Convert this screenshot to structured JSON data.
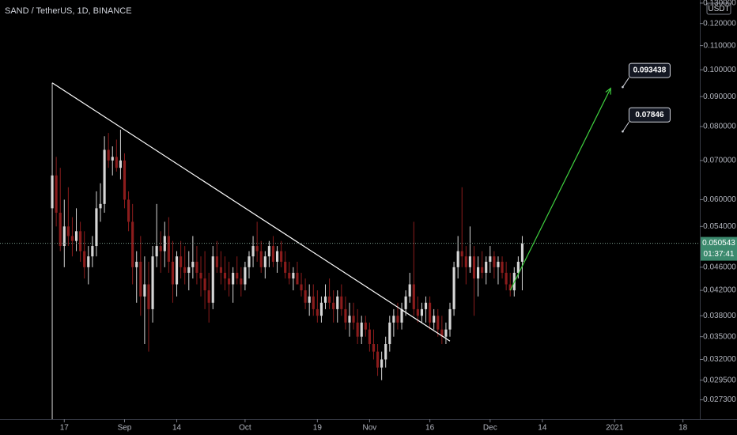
{
  "chart_data": {
    "type": "candlestick",
    "title": "SAND / TetherUS, 1D, BINANCE",
    "quote_unit": "USDT",
    "up_color": "#d6d6d6",
    "down_color": "#8b1c1c",
    "log_scale": true,
    "ylim": [
      0.0253,
      0.1316
    ],
    "yticks": [
      {
        "value": 0.0273,
        "label": "0.027300"
      },
      {
        "value": 0.0295,
        "label": "0.029500"
      },
      {
        "value": 0.032,
        "label": "0.032000"
      },
      {
        "value": 0.035,
        "label": "0.035000"
      },
      {
        "value": 0.038,
        "label": "0.038000"
      },
      {
        "value": 0.042,
        "label": "0.042000"
      },
      {
        "value": 0.046,
        "label": "0.046000"
      },
      {
        "value": 0.054,
        "label": "0.054000"
      },
      {
        "value": 0.06,
        "label": "0.060000"
      },
      {
        "value": 0.07,
        "label": "0.070000"
      },
      {
        "value": 0.08,
        "label": "0.080000"
      },
      {
        "value": 0.09,
        "label": "0.090000"
      },
      {
        "value": 0.1,
        "label": "0.100000"
      },
      {
        "value": 0.11,
        "label": "0.110000"
      },
      {
        "value": 0.12,
        "label": "0.120000"
      },
      {
        "value": 0.13,
        "label": "0.130000"
      }
    ],
    "xlim": [
      -13,
      161.2
    ],
    "xticks": [
      {
        "value": 3,
        "label": "17"
      },
      {
        "value": 18,
        "label": "Sep"
      },
      {
        "value": 31,
        "label": "14"
      },
      {
        "value": 48,
        "label": "Oct"
      },
      {
        "value": 66,
        "label": "19"
      },
      {
        "value": 79,
        "label": "Nov"
      },
      {
        "value": 94,
        "label": "16"
      },
      {
        "value": 109,
        "label": "Dec"
      },
      {
        "value": 122,
        "label": "14"
      },
      {
        "value": 140,
        "label": "2021"
      },
      {
        "value": 157,
        "label": "18"
      }
    ],
    "last_price": 0.050543,
    "countdown": "01:37:41",
    "trend_line": [
      [
        0,
        0.095
      ],
      [
        99,
        0.0344
      ]
    ],
    "arrow": [
      [
        114,
        0.042
      ],
      [
        139,
        0.093
      ]
    ],
    "arrow_color": "#3fd13f",
    "price_labels": [
      {
        "x": 142,
        "value": 0.093438
      },
      {
        "x": 142,
        "value": 0.07846
      }
    ],
    "ohlc": [
      [
        0.058,
        0.095,
        0.0245,
        0.066
      ],
      [
        0.066,
        0.071,
        0.054,
        0.057
      ],
      [
        0.057,
        0.068,
        0.049,
        0.05
      ],
      [
        0.05,
        0.06,
        0.046,
        0.054
      ],
      [
        0.054,
        0.063,
        0.05,
        0.052
      ],
      [
        0.052,
        0.056,
        0.048,
        0.051
      ],
      [
        0.051,
        0.058,
        0.049,
        0.053
      ],
      [
        0.053,
        0.055,
        0.047,
        0.049
      ],
      [
        0.049,
        0.053,
        0.044,
        0.046
      ],
      [
        0.046,
        0.05,
        0.043,
        0.048
      ],
      [
        0.048,
        0.052,
        0.046,
        0.05
      ],
      [
        0.05,
        0.062,
        0.048,
        0.058
      ],
      [
        0.058,
        0.064,
        0.055,
        0.059
      ],
      [
        0.059,
        0.077,
        0.057,
        0.073
      ],
      [
        0.073,
        0.078,
        0.068,
        0.07
      ],
      [
        0.07,
        0.074,
        0.066,
        0.071
      ],
      [
        0.071,
        0.076,
        0.067,
        0.068
      ],
      [
        0.068,
        0.079,
        0.065,
        0.07
      ],
      [
        0.07,
        0.072,
        0.058,
        0.06
      ],
      [
        0.06,
        0.062,
        0.053,
        0.055
      ],
      [
        0.055,
        0.059,
        0.043,
        0.046
      ],
      [
        0.046,
        0.049,
        0.04,
        0.047
      ],
      [
        0.047,
        0.052,
        0.038,
        0.041
      ],
      [
        0.041,
        0.048,
        0.034,
        0.043
      ],
      [
        0.043,
        0.047,
        0.033,
        0.039
      ],
      [
        0.039,
        0.05,
        0.037,
        0.048
      ],
      [
        0.048,
        0.059,
        0.046,
        0.05
      ],
      [
        0.05,
        0.053,
        0.045,
        0.049
      ],
      [
        0.049,
        0.055,
        0.046,
        0.052
      ],
      [
        0.052,
        0.056,
        0.045,
        0.047
      ],
      [
        0.047,
        0.051,
        0.04,
        0.043
      ],
      [
        0.043,
        0.049,
        0.041,
        0.048
      ],
      [
        0.048,
        0.051,
        0.044,
        0.046
      ],
      [
        0.046,
        0.05,
        0.043,
        0.045
      ],
      [
        0.045,
        0.049,
        0.042,
        0.046
      ],
      [
        0.046,
        0.052,
        0.044,
        0.047
      ],
      [
        0.047,
        0.05,
        0.043,
        0.045
      ],
      [
        0.045,
        0.048,
        0.041,
        0.044
      ],
      [
        0.044,
        0.049,
        0.039,
        0.042
      ],
      [
        0.042,
        0.045,
        0.037,
        0.04
      ],
      [
        0.04,
        0.05,
        0.039,
        0.048
      ],
      [
        0.048,
        0.051,
        0.045,
        0.046
      ],
      [
        0.046,
        0.049,
        0.043,
        0.045
      ],
      [
        0.045,
        0.048,
        0.042,
        0.044
      ],
      [
        0.044,
        0.047,
        0.041,
        0.043
      ],
      [
        0.043,
        0.046,
        0.04,
        0.045
      ],
      [
        0.045,
        0.048,
        0.043,
        0.044
      ],
      [
        0.044,
        0.046,
        0.041,
        0.043
      ],
      [
        0.043,
        0.047,
        0.042,
        0.046
      ],
      [
        0.046,
        0.049,
        0.044,
        0.048
      ],
      [
        0.048,
        0.052,
        0.046,
        0.05
      ],
      [
        0.05,
        0.055,
        0.047,
        0.049
      ],
      [
        0.049,
        0.051,
        0.045,
        0.046
      ],
      [
        0.046,
        0.049,
        0.044,
        0.048
      ],
      [
        0.048,
        0.051,
        0.046,
        0.05
      ],
      [
        0.05,
        0.052,
        0.046,
        0.047
      ],
      [
        0.047,
        0.05,
        0.045,
        0.049
      ],
      [
        0.049,
        0.051,
        0.046,
        0.047
      ],
      [
        0.047,
        0.049,
        0.044,
        0.045
      ],
      [
        0.045,
        0.047,
        0.043,
        0.044
      ],
      [
        0.044,
        0.046,
        0.042,
        0.045
      ],
      [
        0.045,
        0.047,
        0.043,
        0.043
      ],
      [
        0.043,
        0.045,
        0.041,
        0.042
      ],
      [
        0.042,
        0.044,
        0.039,
        0.04
      ],
      [
        0.04,
        0.043,
        0.038,
        0.041
      ],
      [
        0.041,
        0.043,
        0.038,
        0.039
      ],
      [
        0.039,
        0.042,
        0.037,
        0.038
      ],
      [
        0.038,
        0.041,
        0.037,
        0.04
      ],
      [
        0.04,
        0.043,
        0.039,
        0.041
      ],
      [
        0.041,
        0.044,
        0.039,
        0.04
      ],
      [
        0.04,
        0.042,
        0.037,
        0.039
      ],
      [
        0.039,
        0.042,
        0.037,
        0.041
      ],
      [
        0.041,
        0.043,
        0.038,
        0.039
      ],
      [
        0.039,
        0.041,
        0.036,
        0.037
      ],
      [
        0.037,
        0.04,
        0.035,
        0.038
      ],
      [
        0.038,
        0.04,
        0.036,
        0.037
      ],
      [
        0.037,
        0.039,
        0.034,
        0.035
      ],
      [
        0.035,
        0.038,
        0.034,
        0.037
      ],
      [
        0.037,
        0.038,
        0.035,
        0.036
      ],
      [
        0.036,
        0.037,
        0.033,
        0.034
      ],
      [
        0.034,
        0.036,
        0.032,
        0.033
      ],
      [
        0.033,
        0.034,
        0.03,
        0.031
      ],
      [
        0.031,
        0.033,
        0.0295,
        0.032
      ],
      [
        0.032,
        0.035,
        0.031,
        0.034
      ],
      [
        0.034,
        0.038,
        0.033,
        0.037
      ],
      [
        0.037,
        0.039,
        0.035,
        0.038
      ],
      [
        0.038,
        0.04,
        0.036,
        0.037
      ],
      [
        0.037,
        0.04,
        0.036,
        0.039
      ],
      [
        0.039,
        0.042,
        0.038,
        0.041
      ],
      [
        0.041,
        0.045,
        0.04,
        0.043
      ],
      [
        0.043,
        0.055,
        0.038,
        0.039
      ],
      [
        0.039,
        0.041,
        0.037,
        0.038
      ],
      [
        0.038,
        0.04,
        0.037,
        0.039
      ],
      [
        0.039,
        0.041,
        0.037,
        0.04
      ],
      [
        0.04,
        0.041,
        0.036,
        0.037
      ],
      [
        0.037,
        0.039,
        0.036,
        0.038
      ],
      [
        0.038,
        0.039,
        0.035,
        0.036
      ],
      [
        0.036,
        0.038,
        0.034,
        0.035
      ],
      [
        0.035,
        0.037,
        0.034,
        0.036
      ],
      [
        0.036,
        0.04,
        0.035,
        0.039
      ],
      [
        0.039,
        0.047,
        0.038,
        0.046
      ],
      [
        0.046,
        0.052,
        0.044,
        0.049
      ],
      [
        0.049,
        0.063,
        0.046,
        0.048
      ],
      [
        0.048,
        0.05,
        0.043,
        0.046
      ],
      [
        0.046,
        0.054,
        0.045,
        0.048
      ],
      [
        0.048,
        0.05,
        0.038,
        0.044
      ],
      [
        0.044,
        0.048,
        0.041,
        0.046
      ],
      [
        0.046,
        0.049,
        0.044,
        0.045
      ],
      [
        0.045,
        0.048,
        0.043,
        0.047
      ],
      [
        0.047,
        0.05,
        0.045,
        0.048
      ],
      [
        0.048,
        0.049,
        0.044,
        0.046
      ],
      [
        0.046,
        0.048,
        0.043,
        0.047
      ],
      [
        0.047,
        0.048,
        0.044,
        0.045
      ],
      [
        0.045,
        0.047,
        0.042,
        0.043
      ],
      [
        0.043,
        0.045,
        0.041,
        0.042
      ],
      [
        0.042,
        0.046,
        0.041,
        0.045
      ],
      [
        0.045,
        0.048,
        0.044,
        0.047
      ],
      [
        0.047,
        0.052,
        0.042,
        0.050543
      ]
    ]
  }
}
